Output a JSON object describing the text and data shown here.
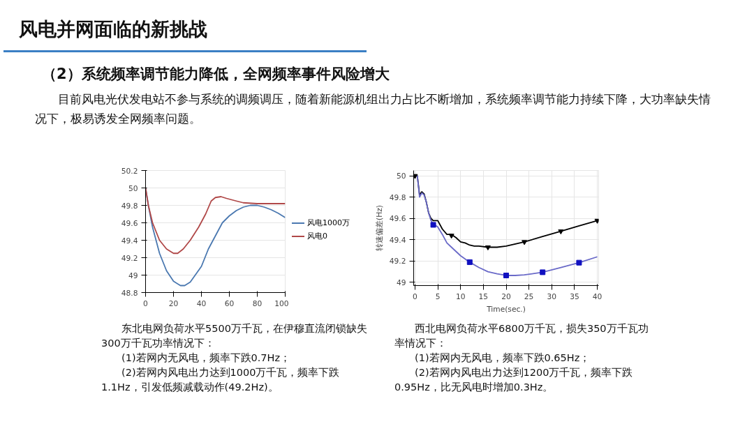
{
  "chart_data": [
    {
      "type": "other",
      "title": "风电并网面临的新挑战",
      "subtitle": "（2）系统频率调节能力降低，全网频率事件风险增大",
      "annotations": [
        "目前风电光伏发电站不参与系统的调频调压，随着新能源机组出力占比不断增加，系统频率调节能力持续下降，大功率缺失情况下，极易诱发全网频率问题。"
      ]
    },
    {
      "type": "line",
      "xlim": [
        0,
        100
      ],
      "xticks": [
        0,
        20,
        40,
        60,
        80,
        100
      ],
      "ylim": [
        48.8,
        50.2
      ],
      "yticks": [
        48.8,
        49,
        49.2,
        49.4,
        49.6,
        49.8,
        50,
        50.2
      ],
      "grid": "y",
      "legend": "right",
      "annotations": [
        "东北电网负荷水平5500万千瓦，在伊穆直流闭锁缺失300万千瓦功率情况下：",
        "(1)若网内无风电，频率下跌0.7Hz；",
        "(2)若网内风电出力达到1000万千瓦，频率下跌1.1Hz，引发低频减载动作(49.2Hz)。"
      ],
      "series": [
        {
          "name": "风电1000万",
          "color": "#4a78b0",
          "x": [
            0,
            2,
            5,
            10,
            15,
            20,
            25,
            28,
            32,
            40,
            45,
            50,
            55,
            60,
            65,
            70,
            75,
            80,
            85,
            90,
            95,
            100
          ],
          "values": [
            50,
            49.8,
            49.55,
            49.25,
            49.05,
            48.93,
            48.88,
            48.88,
            48.92,
            49.1,
            49.3,
            49.45,
            49.6,
            49.68,
            49.74,
            49.78,
            49.8,
            49.8,
            49.78,
            49.75,
            49.71,
            49.66
          ]
        },
        {
          "name": "风电0",
          "color": "#b04848",
          "x": [
            0,
            2,
            5,
            10,
            15,
            20,
            23,
            27,
            32,
            38,
            43,
            47,
            50,
            54,
            58,
            65,
            70,
            80,
            100
          ],
          "values": [
            50,
            49.8,
            49.6,
            49.4,
            49.3,
            49.25,
            49.25,
            49.3,
            49.4,
            49.55,
            49.7,
            49.85,
            49.89,
            49.9,
            49.88,
            49.85,
            49.83,
            49.82,
            49.82
          ]
        }
      ]
    },
    {
      "type": "line",
      "xlim": [
        -0.3,
        40.3
      ],
      "xticks": [
        0,
        5,
        10,
        15,
        20,
        25,
        30,
        35,
        40
      ],
      "ylim": [
        48.97,
        50.05
      ],
      "yticks": [
        49,
        49.2,
        49.4,
        49.6,
        49.8,
        50
      ],
      "grid": true,
      "xlabel": "Time(sec.)",
      "ylabel": "转速偏差(Hz)",
      "annotations": [
        "西北电网负荷水平6800万千瓦，损失350万千瓦功率情况下：",
        "(1)若网内无风电，频率下跌0.65Hz；",
        "(2)若网内风电出力达到1200万千瓦，频率下跌0.95Hz，比无风电时增加0.3Hz。"
      ],
      "series": [
        {
          "color": "#000000",
          "x": [
            0,
            0.5,
            1,
            1.5,
            2,
            2.5,
            3,
            3.5,
            4,
            5,
            6,
            7,
            8,
            9,
            10,
            11,
            12,
            13,
            14,
            16,
            18,
            20,
            24,
            28,
            32,
            36,
            40
          ],
          "values": [
            50,
            50,
            49.82,
            49.85,
            49.83,
            49.75,
            49.65,
            49.6,
            49.58,
            49.58,
            49.5,
            49.45,
            49.45,
            49.42,
            49.38,
            49.37,
            49.35,
            49.34,
            49.34,
            49.33,
            49.33,
            49.34,
            49.38,
            49.43,
            49.48,
            49.53,
            49.58
          ]
        },
        {
          "color": "#6a6ac8",
          "x": [
            0,
            0.5,
            1,
            1.5,
            2,
            2.5,
            3,
            3.5,
            4,
            5,
            6,
            7,
            8,
            10,
            12,
            14,
            16,
            18,
            20,
            22,
            24,
            28,
            32,
            36,
            40
          ],
          "values": [
            50,
            50,
            49.8,
            49.84,
            49.82,
            49.75,
            49.65,
            49.58,
            49.55,
            49.52,
            49.45,
            49.37,
            49.33,
            49.25,
            49.19,
            49.14,
            49.1,
            49.08,
            49.065,
            49.065,
            49.07,
            49.095,
            49.14,
            49.185,
            49.24
          ]
        },
        {
          "type": "scatter",
          "marker": "triangle",
          "color": "#000000",
          "x": [
            0,
            8,
            16,
            24,
            32,
            40
          ],
          "values": [
            50,
            49.44,
            49.33,
            49.38,
            49.48,
            49.58
          ]
        },
        {
          "type": "scatter",
          "marker": "square",
          "color": "#1010c0",
          "x": [
            4,
            12,
            20,
            28,
            36
          ],
          "values": [
            49.54,
            49.19,
            49.065,
            49.095,
            49.185
          ]
        }
      ]
    }
  ]
}
